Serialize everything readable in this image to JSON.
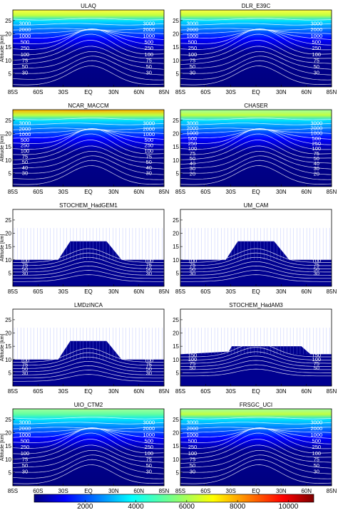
{
  "chart_data": [
    {
      "type": "heatmap",
      "title": "ULAQ",
      "ylabel": "Altitude [km]",
      "x_ticks": [
        "85S",
        "60S",
        "30S",
        "EQ",
        "30N",
        "60N",
        "85N"
      ],
      "y_ticks": [
        5,
        10,
        15,
        20,
        25
      ],
      "ylim": [
        0,
        29
      ],
      "style": "full",
      "peak": 8000,
      "contour_labels": [
        "3000",
        "2000",
        "1000",
        "500",
        "250",
        "100",
        "75",
        "50",
        "30"
      ]
    },
    {
      "type": "heatmap",
      "title": "DLR_E39C",
      "ylabel": "",
      "x_ticks": [
        "85S",
        "60S",
        "30S",
        "EQ",
        "30N",
        "60N",
        "85N"
      ],
      "y_ticks": [
        5,
        10,
        15,
        20,
        25
      ],
      "ylim": [
        0,
        29
      ],
      "style": "full",
      "peak": 7000,
      "contour_labels": [
        "3000",
        "2000",
        "1000",
        "500",
        "250",
        "100",
        "75",
        "50",
        "30"
      ]
    },
    {
      "type": "heatmap",
      "title": "NCAR_MACCM",
      "ylabel": "Altitude [km]",
      "x_ticks": [
        "85S",
        "60S",
        "30S",
        "EQ",
        "30N",
        "60N",
        "85N"
      ],
      "y_ticks": [
        5,
        10,
        15,
        20,
        25
      ],
      "ylim": [
        0,
        29
      ],
      "style": "full",
      "peak": 10000,
      "contour_labels": [
        "3000",
        "2000",
        "1000",
        "500",
        "250",
        "100",
        "75",
        "50",
        "40",
        "30"
      ]
    },
    {
      "type": "heatmap",
      "title": "CHASER",
      "ylabel": "",
      "x_ticks": [
        "85S",
        "60S",
        "30S",
        "EQ",
        "30N",
        "60N",
        "85N"
      ],
      "y_ticks": [
        5,
        10,
        15,
        20,
        25
      ],
      "ylim": [
        0,
        29
      ],
      "style": "full",
      "peak": 6500,
      "contour_labels": [
        "3000",
        "2000",
        "1000",
        "500",
        "250",
        "100",
        "75",
        "50",
        "40",
        "30",
        "20"
      ]
    },
    {
      "type": "heatmap",
      "title": "STOCHEM_HadGEM1",
      "ylabel": "Altitude [km]",
      "x_ticks": [
        "85S",
        "60S",
        "30S",
        "EQ",
        "30N",
        "60N",
        "85N"
      ],
      "y_ticks": [
        5,
        10,
        15,
        20,
        25
      ],
      "ylim": [
        0,
        29
      ],
      "style": "tropo",
      "contour_labels": [
        "100",
        "75",
        "50",
        "30"
      ]
    },
    {
      "type": "heatmap",
      "title": "UM_CAM",
      "ylabel": "",
      "x_ticks": [
        "85S",
        "60S",
        "30S",
        "EQ",
        "30N",
        "60N",
        "85N"
      ],
      "y_ticks": [
        5,
        10,
        15,
        20,
        25
      ],
      "ylim": [
        0,
        29
      ],
      "style": "tropo",
      "contour_labels": [
        "100",
        "75",
        "50",
        "30"
      ]
    },
    {
      "type": "heatmap",
      "title": "LMDzINCA",
      "ylabel": "Altitude [km]",
      "x_ticks": [
        "85S",
        "60S",
        "30S",
        "EQ",
        "30N",
        "60N",
        "85N"
      ],
      "y_ticks": [
        5,
        10,
        15,
        20,
        25
      ],
      "ylim": [
        0,
        29
      ],
      "style": "tropo",
      "contour_labels": [
        "100",
        "75",
        "50",
        "30"
      ]
    },
    {
      "type": "heatmap",
      "title": "STOCHEM_HadAM3",
      "ylabel": "",
      "x_ticks": [
        "85S",
        "60S",
        "30S",
        "EQ",
        "30N",
        "60N",
        "85N"
      ],
      "y_ticks": [
        5,
        10,
        15,
        20,
        25
      ],
      "ylim": [
        0,
        29
      ],
      "style": "tropo",
      "contour_labels": [
        "150",
        "100",
        "75",
        "50"
      ]
    },
    {
      "type": "heatmap",
      "title": "UIO_CTM2",
      "ylabel": "Altitude [km]",
      "x_ticks": [
        "85S",
        "60S",
        "30S",
        "EQ",
        "30N",
        "60N",
        "85N"
      ],
      "y_ticks": [
        5,
        10,
        15,
        20,
        25
      ],
      "ylim": [
        0,
        29
      ],
      "style": "full",
      "peak": 6000,
      "contour_labels": [
        "3000",
        "2000",
        "1000",
        "500",
        "250",
        "100",
        "75",
        "50",
        "30"
      ]
    },
    {
      "type": "heatmap",
      "title": "FRSGC_UCI",
      "ylabel": "",
      "x_ticks": [
        "85S",
        "60S",
        "30S",
        "EQ",
        "30N",
        "60N",
        "85N"
      ],
      "y_ticks": [
        5,
        10,
        15,
        20,
        25
      ],
      "ylim": [
        0,
        29
      ],
      "style": "full",
      "peak": 6500,
      "contour_labels": [
        "3000",
        "2000",
        "1000",
        "500",
        "250",
        "100",
        "75",
        "50",
        "30"
      ]
    }
  ],
  "colorbar": {
    "range": [
      0,
      11000
    ],
    "tick_values": [
      2000,
      4000,
      6000,
      8000,
      10000
    ],
    "tick_labels": [
      "2000",
      "4000",
      "6000",
      "8000",
      "10000"
    ]
  }
}
